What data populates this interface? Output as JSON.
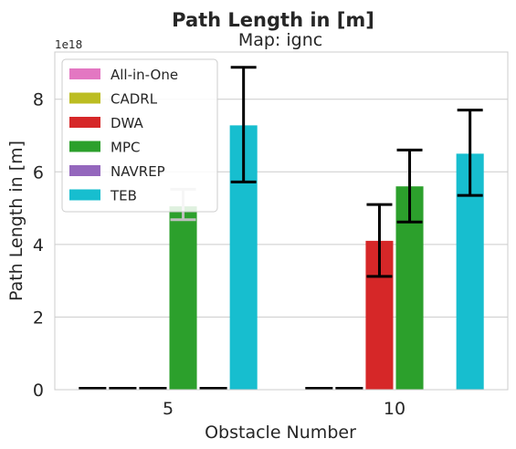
{
  "chart_data": {
    "type": "bar",
    "suptitle": "Path Length in [m]",
    "title": "Map: ignc",
    "xlabel": "Obstacle Number",
    "ylabel": "Path Length in [m]",
    "y_scale_label": "1e18",
    "y_scale": 1e+18,
    "ylim": [
      0,
      9.3
    ],
    "yticks": [
      0,
      2,
      4,
      6,
      8
    ],
    "categories": [
      "5",
      "10"
    ],
    "grid": true,
    "legend_position": "top-left",
    "series": [
      {
        "name": "All-in-One",
        "color": "#e377c2",
        "values": [
          0,
          0
        ],
        "err_low": [
          null,
          null
        ],
        "err_high": [
          null,
          null
        ],
        "err_color": "#000000"
      },
      {
        "name": "CADRL",
        "color": "#bcbd22",
        "values": [
          0,
          0
        ],
        "err_low": [
          null,
          null
        ],
        "err_high": [
          null,
          null
        ],
        "err_color": "#000000"
      },
      {
        "name": "DWA",
        "color": "#d62728",
        "values": [
          0,
          4.1
        ],
        "err_low": [
          null,
          3.12
        ],
        "err_high": [
          null,
          5.1
        ],
        "err_color": "#000000"
      },
      {
        "name": "MPC",
        "color": "#2ca02c",
        "values": [
          5.05,
          5.6
        ],
        "err_low": [
          4.68,
          4.62
        ],
        "err_high": [
          5.52,
          6.6
        ],
        "err_color": [
          "#bfbfbf",
          "#000000"
        ]
      },
      {
        "name": "NAVREP",
        "color": "#9467bd",
        "values": [
          0,
          null
        ],
        "err_low": [
          null,
          null
        ],
        "err_high": [
          null,
          null
        ],
        "err_color": "#000000"
      },
      {
        "name": "TEB",
        "color": "#17becf",
        "values": [
          7.28,
          6.5
        ],
        "err_low": [
          5.72,
          5.35
        ],
        "err_high": [
          8.88,
          7.7
        ],
        "err_color": "#000000"
      }
    ]
  }
}
